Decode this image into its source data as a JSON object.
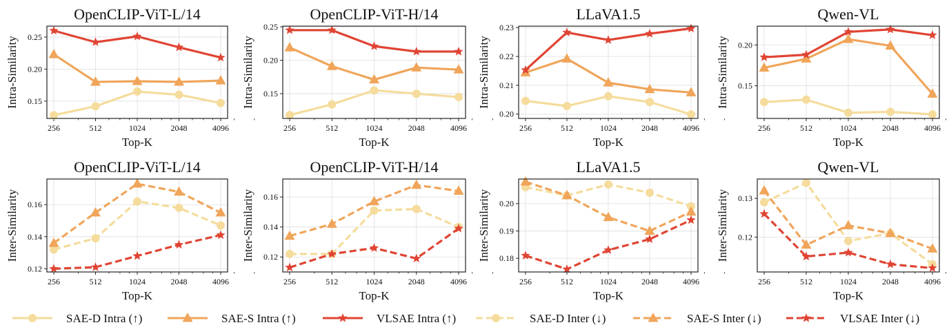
{
  "legend": {
    "placement": "bottom",
    "items": [
      {
        "label": "SAE-D Intra (↑)",
        "series": "SAE-D",
        "style": "solid",
        "marker": "circle",
        "color": "#f5dc9c"
      },
      {
        "label": "SAE-S Intra (↑)",
        "series": "SAE-S",
        "style": "solid",
        "marker": "triangle",
        "color": "#f0a55a"
      },
      {
        "label": "VLSAE Intra (↑)",
        "series": "VLSAE",
        "style": "solid",
        "marker": "star",
        "color": "#e04433"
      },
      {
        "label": "SAE-D Inter (↓)",
        "series": "SAE-D",
        "style": "dashed",
        "marker": "circle",
        "color": "#f5dc9c"
      },
      {
        "label": "SAE-S Inter (↓)",
        "series": "SAE-S",
        "style": "dashed",
        "marker": "triangle",
        "color": "#f0a55a"
      },
      {
        "label": "VLSAE Inter (↓)",
        "series": "VLSAE",
        "style": "dashed",
        "marker": "star",
        "color": "#e04433"
      }
    ]
  },
  "chart_data": [
    {
      "type": "line",
      "title": "OpenCLIP-ViT-L/14",
      "xlabel": "Top-K",
      "ylabel": "Intra-Similarity",
      "xscale": "log2",
      "grid": true,
      "categories": [
        "256",
        "512",
        "1024",
        "2048",
        "4096"
      ],
      "x": [
        256,
        512,
        1024,
        2048,
        4096
      ],
      "ylim": [
        0.123,
        0.267
      ],
      "yticks": [
        "0.15",
        "0.20",
        "0.25"
      ],
      "style": "solid",
      "series": [
        {
          "name": "SAE-D",
          "values": [
            0.128,
            0.142,
            0.165,
            0.16,
            0.147
          ]
        },
        {
          "name": "SAE-S",
          "values": [
            0.223,
            0.18,
            0.181,
            0.18,
            0.182
          ]
        },
        {
          "name": "VLSAE",
          "values": [
            0.26,
            0.242,
            0.251,
            0.234,
            0.218
          ]
        }
      ]
    },
    {
      "type": "line",
      "title": "OpenCLIP-ViT-H/14",
      "xlabel": "Top-K",
      "ylabel": "Intra-Similarity",
      "xscale": "log2",
      "grid": true,
      "categories": [
        "256",
        "512",
        "1024",
        "2048",
        "4096"
      ],
      "x": [
        256,
        512,
        1024,
        2048,
        4096
      ],
      "ylim": [
        0.113,
        0.251
      ],
      "yticks": [
        "0.15",
        "0.20",
        "0.25"
      ],
      "style": "solid",
      "series": [
        {
          "name": "SAE-D",
          "values": [
            0.118,
            0.134,
            0.155,
            0.15,
            0.145
          ]
        },
        {
          "name": "SAE-S",
          "values": [
            0.219,
            0.191,
            0.171,
            0.189,
            0.186
          ]
        },
        {
          "name": "VLSAE",
          "values": [
            0.245,
            0.245,
            0.221,
            0.213,
            0.213
          ]
        }
      ]
    },
    {
      "type": "line",
      "title": "LLaVA1.5",
      "xlabel": "Top-K",
      "ylabel": "Intra-Similarity",
      "xscale": "log2",
      "grid": true,
      "categories": [
        "256",
        "512",
        "1024",
        "2048",
        "4096"
      ],
      "x": [
        256,
        512,
        1024,
        2048,
        4096
      ],
      "ylim": [
        0.1985,
        0.2305
      ],
      "yticks": [
        "0.20",
        "0.21",
        "0.22",
        "0.23"
      ],
      "style": "solid",
      "series": [
        {
          "name": "SAE-D",
          "values": [
            0.2046,
            0.2028,
            0.2062,
            0.2042,
            0.1999
          ]
        },
        {
          "name": "SAE-S",
          "values": [
            0.2144,
            0.2192,
            0.2109,
            0.2086,
            0.2075
          ]
        },
        {
          "name": "VLSAE",
          "values": [
            0.2153,
            0.2283,
            0.2257,
            0.2279,
            0.2297
          ]
        }
      ]
    },
    {
      "type": "line",
      "title": "Qwen-VL",
      "xlabel": "Top-K",
      "ylabel": "Intra-Similarity",
      "xscale": "log2",
      "grid": true,
      "categories": [
        "256",
        "512",
        "1024",
        "2048",
        "4096"
      ],
      "x": [
        256,
        512,
        1024,
        2048,
        4096
      ],
      "ylim": [
        0.11,
        0.223
      ],
      "yticks": [
        "0.15",
        "0.20"
      ],
      "style": "solid",
      "series": [
        {
          "name": "SAE-D",
          "values": [
            0.13,
            0.133,
            0.117,
            0.118,
            0.115
          ]
        },
        {
          "name": "SAE-S",
          "values": [
            0.172,
            0.183,
            0.207,
            0.199,
            0.14
          ]
        },
        {
          "name": "VLSAE",
          "values": [
            0.185,
            0.188,
            0.216,
            0.219,
            0.212
          ]
        }
      ]
    },
    {
      "type": "line",
      "title": "OpenCLIP-ViT-L/14",
      "xlabel": "Top-K",
      "ylabel": "Inter-Similarity",
      "xscale": "log2",
      "grid": true,
      "categories": [
        "256",
        "512",
        "1024",
        "2048",
        "4096"
      ],
      "x": [
        256,
        512,
        1024,
        2048,
        4096
      ],
      "ylim": [
        0.118,
        0.176
      ],
      "yticks": [
        "0.12",
        "0.14",
        "0.16"
      ],
      "style": "dashed",
      "series": [
        {
          "name": "SAE-D",
          "values": [
            0.132,
            0.139,
            0.162,
            0.158,
            0.147
          ]
        },
        {
          "name": "SAE-S",
          "values": [
            0.136,
            0.155,
            0.173,
            0.168,
            0.155
          ]
        },
        {
          "name": "VLSAE",
          "values": [
            0.12,
            0.121,
            0.128,
            0.135,
            0.141
          ]
        }
      ]
    },
    {
      "type": "line",
      "title": "OpenCLIP-ViT-H/14",
      "xlabel": "Top-K",
      "ylabel": "Inter-Similarity",
      "xscale": "log2",
      "grid": true,
      "categories": [
        "256",
        "512",
        "1024",
        "2048",
        "4096"
      ],
      "x": [
        256,
        512,
        1024,
        2048,
        4096
      ],
      "ylim": [
        0.11,
        0.172
      ],
      "yticks": [
        "0.12",
        "0.14",
        "0.16"
      ],
      "style": "dashed",
      "series": [
        {
          "name": "SAE-D",
          "values": [
            0.122,
            0.122,
            0.151,
            0.152,
            0.14
          ]
        },
        {
          "name": "SAE-S",
          "values": [
            0.134,
            0.142,
            0.157,
            0.168,
            0.164
          ]
        },
        {
          "name": "VLSAE",
          "values": [
            0.113,
            0.122,
            0.126,
            0.119,
            0.139
          ]
        }
      ]
    },
    {
      "type": "line",
      "title": "LLaVA1.5",
      "xlabel": "Top-K",
      "ylabel": "Inter-Similarity",
      "xscale": "log2",
      "grid": true,
      "categories": [
        "256",
        "512",
        "1024",
        "2048",
        "4096"
      ],
      "x": [
        256,
        512,
        1024,
        2048,
        4096
      ],
      "ylim": [
        0.175,
        0.209
      ],
      "yticks": [
        "0.18",
        "0.19",
        "0.20"
      ],
      "style": "dashed",
      "series": [
        {
          "name": "SAE-D",
          "values": [
            0.206,
            0.203,
            0.207,
            0.204,
            0.199
          ]
        },
        {
          "name": "SAE-S",
          "values": [
            0.208,
            0.203,
            0.195,
            0.19,
            0.197
          ]
        },
        {
          "name": "VLSAE",
          "values": [
            0.181,
            0.176,
            0.183,
            0.187,
            0.194
          ]
        }
      ]
    },
    {
      "type": "line",
      "title": "Qwen-VL",
      "xlabel": "Top-K",
      "ylabel": "Inter-Similarity",
      "xscale": "log2",
      "grid": true,
      "categories": [
        "256",
        "512",
        "1024",
        "2048",
        "4096"
      ],
      "x": [
        256,
        512,
        1024,
        2048,
        4096
      ],
      "ylim": [
        0.111,
        0.135
      ],
      "yticks": [
        "0.12",
        "0.13"
      ],
      "style": "dashed",
      "series": [
        {
          "name": "SAE-D",
          "values": [
            0.129,
            0.134,
            0.119,
            0.121,
            0.113
          ]
        },
        {
          "name": "SAE-S",
          "values": [
            0.132,
            0.118,
            0.123,
            0.121,
            0.117
          ]
        },
        {
          "name": "VLSAE",
          "values": [
            0.126,
            0.115,
            0.116,
            0.113,
            0.112
          ]
        }
      ]
    }
  ]
}
